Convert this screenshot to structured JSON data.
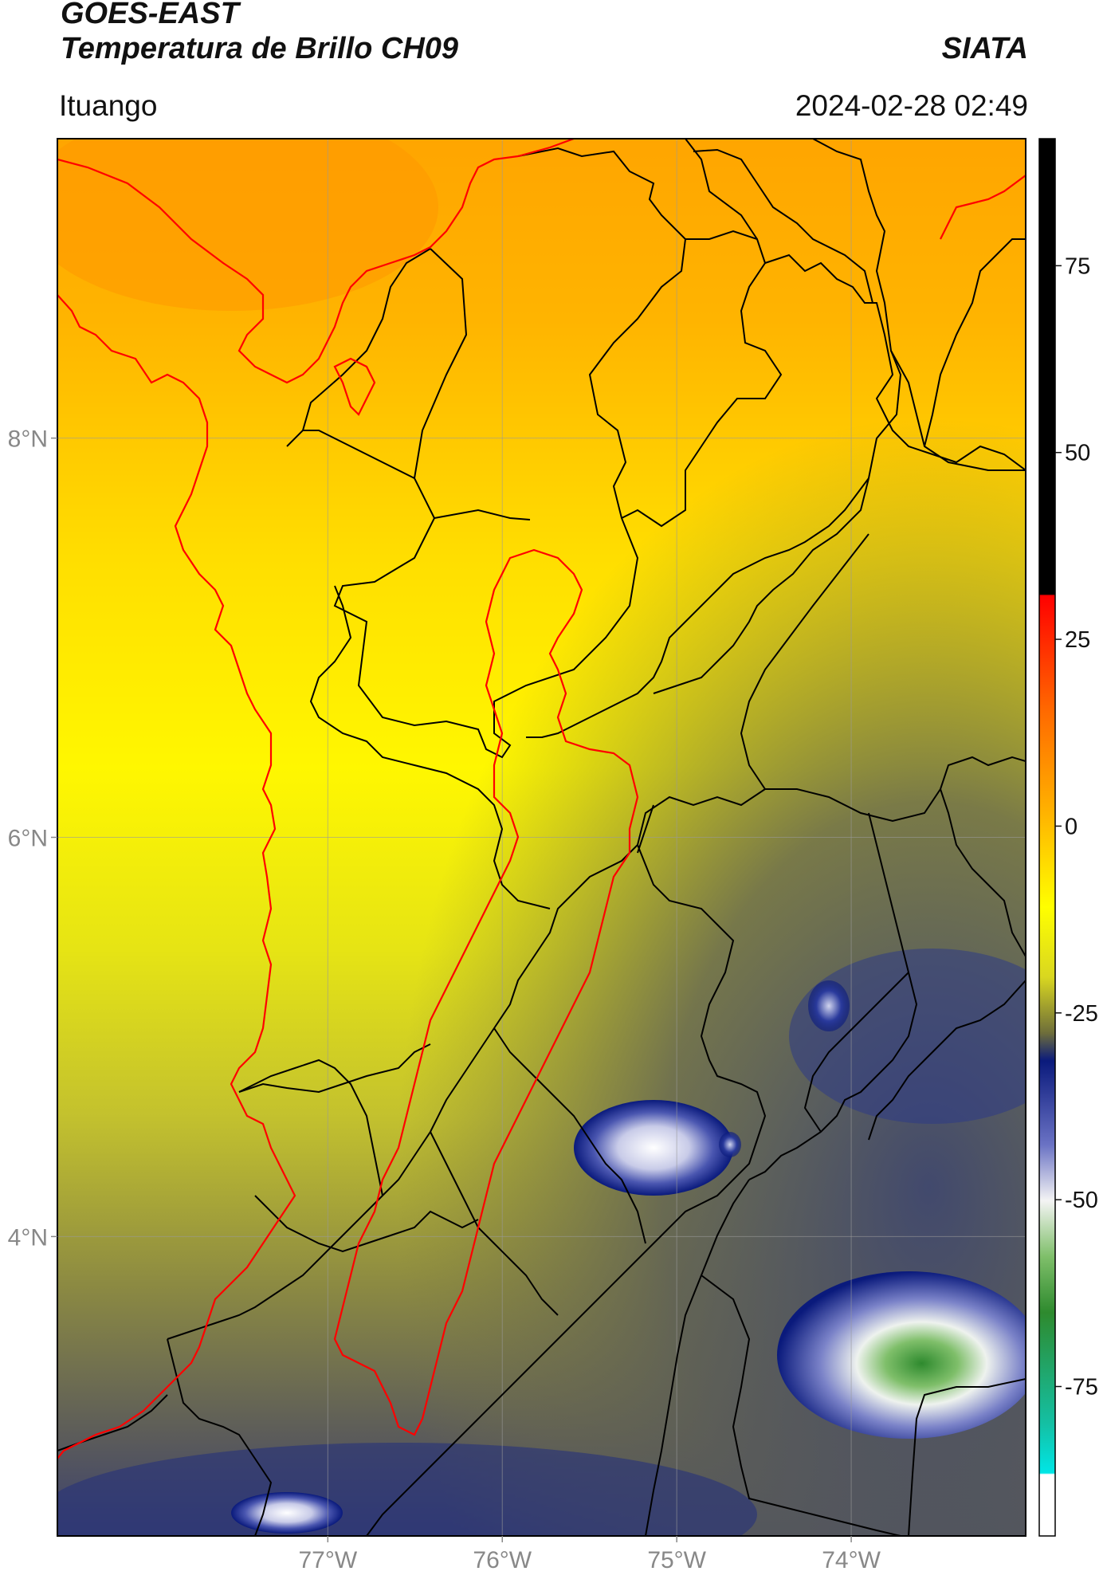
{
  "header": {
    "title": "GOES-EAST",
    "subtitle": "Temperatura de Brillo CH09",
    "organization": "SIATA",
    "location": "Ituango",
    "datetime": "2024-02-28 02:49"
  },
  "map": {
    "lon_range": [
      -78.55,
      -73.0
    ],
    "lat_range": [
      2.5,
      9.5
    ],
    "lon_ticks": [
      {
        "value": -77,
        "label": "77°W"
      },
      {
        "value": -76,
        "label": "76°W"
      },
      {
        "value": -75,
        "label": "75°W"
      },
      {
        "value": -74,
        "label": "74°W"
      }
    ],
    "lat_ticks": [
      {
        "value": 8,
        "label": "8°N"
      },
      {
        "value": 6,
        "label": "6°N"
      },
      {
        "value": 4,
        "label": "4°N"
      }
    ],
    "gridlines": true
  },
  "colorbar": {
    "range": [
      -95,
      92
    ],
    "ticks": [
      {
        "value": 75,
        "label": "75"
      },
      {
        "value": 50,
        "label": "50"
      },
      {
        "value": 25,
        "label": "25"
      },
      {
        "value": 0,
        "label": "0"
      },
      {
        "value": -25,
        "label": "-25"
      },
      {
        "value": -50,
        "label": "-50"
      },
      {
        "value": -75,
        "label": "-75"
      }
    ],
    "colors": {
      "warm_black": "#000000",
      "red": "#ff0000",
      "orange": "#ff9a00",
      "yellow": "#ffff00",
      "olive": "#6e6e3a",
      "navy": "#0a1a7c",
      "white": "#f4f4f4",
      "green": "#2e8a2e",
      "cyan": "#00e6e6"
    }
  },
  "colors": {
    "boundary": "#000000",
    "coastline": "#ff0000",
    "region_outline": "#ff0000"
  }
}
